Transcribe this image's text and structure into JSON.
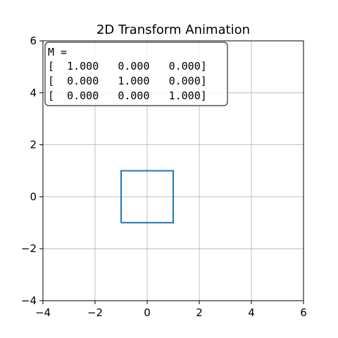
{
  "chart_data": {
    "type": "line",
    "title": "2D Transform Animation",
    "xlabel": "",
    "ylabel": "",
    "xlim": [
      -4,
      6
    ],
    "ylim": [
      -4,
      6
    ],
    "x_ticks": [
      -4,
      -2,
      0,
      2,
      4,
      6
    ],
    "y_ticks": [
      -4,
      -2,
      0,
      2,
      4,
      6
    ],
    "x_tick_labels": [
      "−4",
      "−2",
      "0",
      "2",
      "4",
      "6"
    ],
    "y_tick_labels": [
      "−4",
      "−2",
      "0",
      "2",
      "4",
      "6"
    ],
    "grid": true,
    "series": [
      {
        "color": "#1f77b4",
        "x": [
          -1,
          1,
          1,
          -1,
          -1
        ],
        "y": [
          -1,
          -1,
          1,
          1,
          -1
        ]
      }
    ],
    "annotation": {
      "lines": [
        "M =",
        "[  1.000   0.000   0.000]",
        "[  0.000   1.000   0.000]",
        "[  0.000   0.000   1.000]"
      ]
    }
  }
}
